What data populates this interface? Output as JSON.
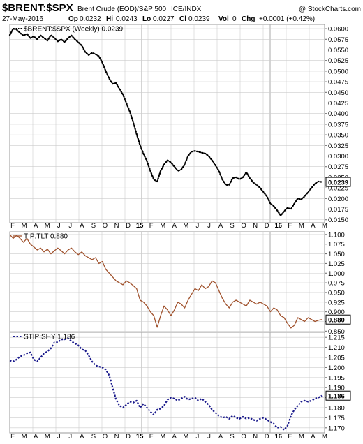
{
  "header": {
    "symbol": "$BRENT:$SPX",
    "description": "Brent Crude (EOD)/S&P 500",
    "exchange": "ICE/INDX",
    "copyright": "@ StockCharts.com",
    "date": "27-May-2016",
    "op_label": "Op",
    "op": "0.0232",
    "hi_label": "Hi",
    "hi": "0.0243",
    "lo_label": "Lo",
    "lo": "0.0227",
    "cl_label": "Cl",
    "cl": "0.0239",
    "vol_label": "Vol",
    "vol": "0",
    "chg_label": "Chg",
    "chg": "+0.0001 (+0.42%)"
  },
  "x_axis_labels": [
    "F",
    "M",
    "A",
    "M",
    "J",
    "J",
    "A",
    "S",
    "O",
    "N",
    "D",
    "15",
    "F",
    "M",
    "A",
    "M",
    "J",
    "J",
    "A",
    "S",
    "O",
    "N",
    "D",
    "16",
    "F",
    "M",
    "A",
    "M"
  ],
  "colors": {
    "brent": "#000000",
    "tip_tlt": "#a0522d",
    "stip_shy": "#1a1a8c",
    "grid": "#cccccc",
    "frame": "#999999"
  },
  "chart_data": [
    {
      "type": "line",
      "legend": "$BRENT:$SPX (Weekly) 0.0239",
      "style": "dotted",
      "last_value": "0.0239",
      "ylim": [
        0.0143,
        0.061
      ],
      "yticks": [
        "0.0600",
        "0.0575",
        "0.0550",
        "0.0525",
        "0.0500",
        "0.0475",
        "0.0450",
        "0.0425",
        "0.0400",
        "0.0375",
        "0.0350",
        "0.0325",
        "0.0300",
        "0.0275",
        "0.0250",
        "0.0225",
        "0.0200",
        "0.0175",
        "0.0150"
      ],
      "points": [
        [
          0,
          0.0585
        ],
        [
          1,
          0.06
        ],
        [
          2,
          0.0598
        ],
        [
          3,
          0.059
        ],
        [
          4,
          0.0584
        ],
        [
          5,
          0.0588
        ],
        [
          6,
          0.0578
        ],
        [
          7,
          0.0582
        ],
        [
          8,
          0.0575
        ],
        [
          9,
          0.0584
        ],
        [
          10,
          0.0578
        ],
        [
          11,
          0.0572
        ],
        [
          12,
          0.0585
        ],
        [
          13,
          0.0578
        ],
        [
          14,
          0.057
        ],
        [
          15,
          0.0575
        ],
        [
          16,
          0.0568
        ],
        [
          17,
          0.0578
        ],
        [
          18,
          0.0584
        ],
        [
          19,
          0.0575
        ],
        [
          20,
          0.0568
        ],
        [
          21,
          0.056
        ],
        [
          22,
          0.0545
        ],
        [
          23,
          0.0538
        ],
        [
          24,
          0.0543
        ],
        [
          25,
          0.054
        ],
        [
          26,
          0.0535
        ],
        [
          27,
          0.052
        ],
        [
          28,
          0.05
        ],
        [
          29,
          0.0482
        ],
        [
          30,
          0.047
        ],
        [
          31,
          0.0472
        ],
        [
          32,
          0.0458
        ],
        [
          33,
          0.0445
        ],
        [
          34,
          0.0425
        ],
        [
          35,
          0.0405
        ],
        [
          36,
          0.038
        ],
        [
          37,
          0.0352
        ],
        [
          38,
          0.0325
        ],
        [
          39,
          0.0305
        ],
        [
          40,
          0.0288
        ],
        [
          41,
          0.0265
        ],
        [
          42,
          0.0245
        ],
        [
          43,
          0.024
        ],
        [
          44,
          0.0265
        ],
        [
          45,
          0.028
        ],
        [
          46,
          0.029
        ],
        [
          47,
          0.0285
        ],
        [
          48,
          0.0275
        ],
        [
          49,
          0.0265
        ],
        [
          50,
          0.0268
        ],
        [
          51,
          0.028
        ],
        [
          52,
          0.03
        ],
        [
          53,
          0.031
        ],
        [
          54,
          0.0312
        ],
        [
          55,
          0.031
        ],
        [
          56,
          0.0308
        ],
        [
          57,
          0.0306
        ],
        [
          58,
          0.03
        ],
        [
          59,
          0.029
        ],
        [
          60,
          0.0278
        ],
        [
          61,
          0.0265
        ],
        [
          62,
          0.0245
        ],
        [
          63,
          0.0232
        ],
        [
          64,
          0.0232
        ],
        [
          65,
          0.0248
        ],
        [
          66,
          0.025
        ],
        [
          67,
          0.0245
        ],
        [
          68,
          0.025
        ],
        [
          69,
          0.0262
        ],
        [
          70,
          0.0248
        ],
        [
          71,
          0.0238
        ],
        [
          72,
          0.0232
        ],
        [
          73,
          0.0225
        ],
        [
          74,
          0.0215
        ],
        [
          75,
          0.0205
        ],
        [
          76,
          0.0188
        ],
        [
          77,
          0.0182
        ],
        [
          78,
          0.0172
        ],
        [
          79,
          0.016
        ],
        [
          80,
          0.017
        ],
        [
          81,
          0.0178
        ],
        [
          82,
          0.0175
        ],
        [
          83,
          0.0188
        ],
        [
          84,
          0.02
        ],
        [
          85,
          0.0198
        ],
        [
          86,
          0.0205
        ],
        [
          87,
          0.0215
        ],
        [
          88,
          0.0225
        ],
        [
          89,
          0.0235
        ],
        [
          90,
          0.024
        ],
        [
          91,
          0.0239
        ]
      ]
    },
    {
      "type": "line",
      "legend": "TIP:TLT 0.880",
      "style": "solid",
      "last_value": "0.880",
      "ylim": [
        0.847,
        1.107
      ],
      "yticks": [
        "1.100",
        "1.075",
        "1.050",
        "1.025",
        "1.000",
        "0.975",
        "0.950",
        "0.925",
        "0.900",
        "0.875",
        "0.850"
      ],
      "points": [
        [
          0,
          1.1
        ],
        [
          1,
          1.09
        ],
        [
          2,
          1.098
        ],
        [
          3,
          1.09
        ],
        [
          4,
          1.08
        ],
        [
          5,
          1.09
        ],
        [
          6,
          1.075
        ],
        [
          7,
          1.068
        ],
        [
          8,
          1.06
        ],
        [
          9,
          1.065
        ],
        [
          10,
          1.055
        ],
        [
          11,
          1.062
        ],
        [
          12,
          1.05
        ],
        [
          13,
          1.058
        ],
        [
          14,
          1.065
        ],
        [
          15,
          1.058
        ],
        [
          16,
          1.05
        ],
        [
          17,
          1.06
        ],
        [
          18,
          1.065
        ],
        [
          19,
          1.055
        ],
        [
          20,
          1.048
        ],
        [
          21,
          1.055
        ],
        [
          22,
          1.045
        ],
        [
          23,
          1.04
        ],
        [
          24,
          1.035
        ],
        [
          25,
          1.04
        ],
        [
          26,
          1.025
        ],
        [
          27,
          1.03
        ],
        [
          28,
          1.01
        ],
        [
          29,
          1.0
        ],
        [
          30,
          0.99
        ],
        [
          31,
          0.98
        ],
        [
          32,
          0.975
        ],
        [
          33,
          0.97
        ],
        [
          34,
          0.98
        ],
        [
          35,
          0.975
        ],
        [
          36,
          0.968
        ],
        [
          37,
          0.96
        ],
        [
          38,
          0.93
        ],
        [
          39,
          0.925
        ],
        [
          40,
          0.915
        ],
        [
          41,
          0.9
        ],
        [
          42,
          0.89
        ],
        [
          43,
          0.86
        ],
        [
          44,
          0.89
        ],
        [
          45,
          0.915
        ],
        [
          46,
          0.905
        ],
        [
          47,
          0.89
        ],
        [
          48,
          0.905
        ],
        [
          49,
          0.925
        ],
        [
          50,
          0.92
        ],
        [
          51,
          0.91
        ],
        [
          52,
          0.93
        ],
        [
          53,
          0.945
        ],
        [
          54,
          0.96
        ],
        [
          55,
          0.955
        ],
        [
          56,
          0.97
        ],
        [
          57,
          0.96
        ],
        [
          58,
          0.965
        ],
        [
          59,
          0.98
        ],
        [
          60,
          0.975
        ],
        [
          61,
          0.955
        ],
        [
          62,
          0.935
        ],
        [
          63,
          0.92
        ],
        [
          64,
          0.91
        ],
        [
          65,
          0.925
        ],
        [
          66,
          0.93
        ],
        [
          67,
          0.925
        ],
        [
          68,
          0.92
        ],
        [
          69,
          0.915
        ],
        [
          70,
          0.93
        ],
        [
          71,
          0.925
        ],
        [
          72,
          0.92
        ],
        [
          73,
          0.925
        ],
        [
          74,
          0.92
        ],
        [
          75,
          0.915
        ],
        [
          76,
          0.9
        ],
        [
          77,
          0.91
        ],
        [
          78,
          0.905
        ],
        [
          79,
          0.89
        ],
        [
          80,
          0.885
        ],
        [
          81,
          0.87
        ],
        [
          82,
          0.858
        ],
        [
          83,
          0.865
        ],
        [
          84,
          0.885
        ],
        [
          85,
          0.88
        ],
        [
          86,
          0.875
        ],
        [
          87,
          0.885
        ],
        [
          88,
          0.88
        ],
        [
          89,
          0.875
        ],
        [
          90,
          0.878
        ],
        [
          91,
          0.88
        ]
      ]
    },
    {
      "type": "line",
      "legend": "STIP:SHY 1.186",
      "style": "dashed",
      "last_value": "1.186",
      "ylim": [
        1.1675,
        1.2175
      ],
      "yticks": [
        "1.215",
        "1.210",
        "1.205",
        "1.200",
        "1.195",
        "1.190",
        "1.185",
        "1.180",
        "1.175",
        "1.170"
      ],
      "points": [
        [
          0,
          1.2035
        ],
        [
          1,
          1.203
        ],
        [
          2,
          1.204
        ],
        [
          3,
          1.2055
        ],
        [
          4,
          1.206
        ],
        [
          5,
          1.207
        ],
        [
          6,
          1.2075
        ],
        [
          7,
          1.204
        ],
        [
          8,
          1.203
        ],
        [
          9,
          1.205
        ],
        [
          10,
          1.207
        ],
        [
          11,
          1.208
        ],
        [
          12,
          1.2095
        ],
        [
          13,
          1.2125
        ],
        [
          14,
          1.2125
        ],
        [
          15,
          1.214
        ],
        [
          16,
          1.214
        ],
        [
          17,
          1.2145
        ],
        [
          18,
          1.213
        ],
        [
          19,
          1.212
        ],
        [
          20,
          1.211
        ],
        [
          21,
          1.209
        ],
        [
          22,
          1.2085
        ],
        [
          23,
          1.206
        ],
        [
          24,
          1.203
        ],
        [
          25,
          1.201
        ],
        [
          26,
          1.2005
        ],
        [
          27,
          1.2
        ],
        [
          28,
          1.199
        ],
        [
          29,
          1.196
        ],
        [
          30,
          1.19
        ],
        [
          31,
          1.184
        ],
        [
          32,
          1.181
        ],
        [
          33,
          1.18
        ],
        [
          34,
          1.1815
        ],
        [
          35,
          1.183
        ],
        [
          36,
          1.1825
        ],
        [
          37,
          1.1835
        ],
        [
          38,
          1.18
        ],
        [
          39,
          1.182
        ],
        [
          40,
          1.18
        ],
        [
          41,
          1.178
        ],
        [
          42,
          1.1765
        ],
        [
          43,
          1.179
        ],
        [
          44,
          1.1795
        ],
        [
          45,
          1.181
        ],
        [
          46,
          1.184
        ],
        [
          47,
          1.185
        ],
        [
          48,
          1.1845
        ],
        [
          49,
          1.1835
        ],
        [
          50,
          1.1845
        ],
        [
          51,
          1.1855
        ],
        [
          52,
          1.184
        ],
        [
          53,
          1.1845
        ],
        [
          54,
          1.185
        ],
        [
          55,
          1.1835
        ],
        [
          56,
          1.1845
        ],
        [
          57,
          1.183
        ],
        [
          58,
          1.1815
        ],
        [
          59,
          1.179
        ],
        [
          60,
          1.1775
        ],
        [
          61,
          1.176
        ],
        [
          62,
          1.175
        ],
        [
          63,
          1.1755
        ],
        [
          64,
          1.1745
        ],
        [
          65,
          1.176
        ],
        [
          66,
          1.175
        ],
        [
          67,
          1.1745
        ],
        [
          68,
          1.1755
        ],
        [
          69,
          1.1745
        ],
        [
          70,
          1.175
        ],
        [
          71,
          1.174
        ],
        [
          72,
          1.1735
        ],
        [
          73,
          1.1745
        ],
        [
          74,
          1.175
        ],
        [
          75,
          1.174
        ],
        [
          76,
          1.173
        ],
        [
          77,
          1.172
        ],
        [
          78,
          1.17
        ],
        [
          79,
          1.1705
        ],
        [
          80,
          1.169
        ],
        [
          81,
          1.171
        ],
        [
          82,
          1.176
        ],
        [
          83,
          1.179
        ],
        [
          84,
          1.181
        ],
        [
          85,
          1.183
        ],
        [
          86,
          1.1835
        ],
        [
          87,
          1.183
        ],
        [
          88,
          1.1835
        ],
        [
          89,
          1.1845
        ],
        [
          90,
          1.185
        ],
        [
          91,
          1.186
        ]
      ]
    }
  ]
}
